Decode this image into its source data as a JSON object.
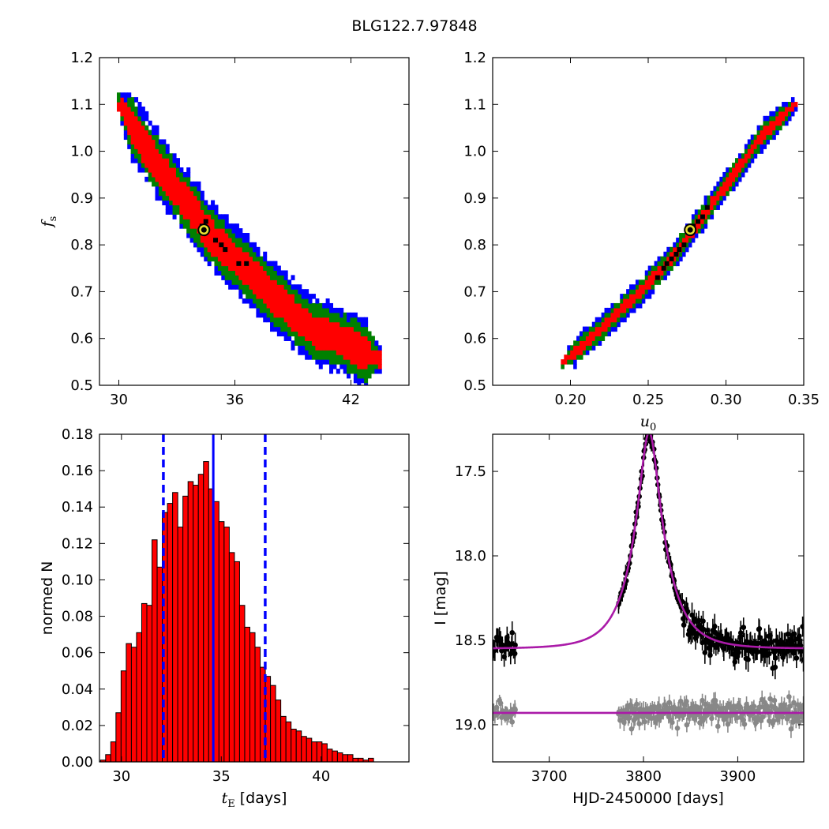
{
  "figure": {
    "title": "BLG122.7.97848"
  },
  "colors": {
    "c68": "#ff0000",
    "c95": "#008000",
    "c99": "#0000ff",
    "best": "#e8e030",
    "fit": "#aa1aa8",
    "resid": "#888888",
    "hist": "#ff0000",
    "median": "#0000ff"
  },
  "chart_data": [
    {
      "id": "tE-fs",
      "type": "heatmap",
      "xlabel": "",
      "ylabel": "f_s",
      "xlim": [
        29,
        45
      ],
      "ylim": [
        0.5,
        1.2
      ],
      "xticks": [
        "30",
        "36",
        "42"
      ],
      "yticks": [
        "0.5",
        "0.6",
        "0.7",
        "0.8",
        "0.9",
        "1.0",
        "1.1",
        "1.2"
      ],
      "band": {
        "center": [
          [
            30.0,
            1.1
          ],
          [
            31.5,
            1.0
          ],
          [
            33.3,
            0.9
          ],
          [
            35.0,
            0.81
          ],
          [
            36.8,
            0.74
          ],
          [
            38.5,
            0.67
          ],
          [
            40.0,
            0.62
          ],
          [
            41.5,
            0.595
          ],
          [
            43.5,
            0.555
          ]
        ],
        "half_widths_fs": {
          "c68": 0.035,
          "c95": 0.055,
          "c99": 0.072
        }
      },
      "best_fit": [
        34.4,
        0.832
      ],
      "samples": [
        [
          34.5,
          0.85
        ],
        [
          35.0,
          0.81
        ],
        [
          35.3,
          0.8
        ],
        [
          35.5,
          0.79
        ],
        [
          36.2,
          0.76
        ],
        [
          36.6,
          0.76
        ],
        [
          34.3,
          0.84
        ]
      ]
    },
    {
      "id": "u0-fs",
      "type": "heatmap",
      "xlabel": "u_0",
      "ylabel": "",
      "xlim": [
        0.15,
        0.35
      ],
      "ylim": [
        0.5,
        1.2
      ],
      "xticks": [
        "0.20",
        "0.25",
        "0.30",
        "0.35"
      ],
      "yticks": [
        "0.5",
        "0.6",
        "0.7",
        "0.8",
        "0.9",
        "1.0",
        "1.1",
        "1.2"
      ],
      "band": {
        "center": [
          [
            0.195,
            0.548
          ],
          [
            0.22,
            0.62
          ],
          [
            0.245,
            0.7
          ],
          [
            0.265,
            0.77
          ],
          [
            0.285,
            0.86
          ],
          [
            0.305,
            0.95
          ],
          [
            0.325,
            1.04
          ],
          [
            0.345,
            1.1
          ]
        ],
        "half_widths_fs": {
          "c68": 0.012,
          "c95": 0.022,
          "c99": 0.03
        }
      },
      "best_fit": [
        0.277,
        0.832
      ],
      "samples": [
        [
          0.262,
          0.76
        ],
        [
          0.265,
          0.77
        ],
        [
          0.268,
          0.78
        ],
        [
          0.27,
          0.79
        ],
        [
          0.273,
          0.8
        ],
        [
          0.279,
          0.84
        ],
        [
          0.282,
          0.85
        ],
        [
          0.285,
          0.86
        ],
        [
          0.288,
          0.88
        ],
        [
          0.256,
          0.73
        ],
        [
          0.26,
          0.75
        ]
      ]
    },
    {
      "id": "tE-hist",
      "type": "bar",
      "xlabel": "t_E [days]",
      "ylabel": "normed N",
      "xlim": [
        28.9,
        44.4
      ],
      "ylim": [
        0,
        0.18
      ],
      "xticks": [
        "30",
        "35",
        "40"
      ],
      "yticks": [
        "0.00",
        "0.02",
        "0.04",
        "0.06",
        "0.08",
        "0.10",
        "0.12",
        "0.14",
        "0.16",
        "0.18"
      ],
      "bin_start": 28.95,
      "bin_width": 0.258,
      "values": [
        0.001,
        0.004,
        0.011,
        0.027,
        0.05,
        0.065,
        0.063,
        0.071,
        0.087,
        0.086,
        0.122,
        0.107,
        0.137,
        0.142,
        0.148,
        0.129,
        0.146,
        0.154,
        0.152,
        0.158,
        0.165,
        0.15,
        0.143,
        0.132,
        0.129,
        0.115,
        0.11,
        0.086,
        0.074,
        0.071,
        0.063,
        0.052,
        0.047,
        0.042,
        0.034,
        0.025,
        0.022,
        0.018,
        0.017,
        0.014,
        0.013,
        0.011,
        0.011,
        0.01,
        0.007,
        0.006,
        0.005,
        0.004,
        0.004,
        0.002,
        0.002,
        0.001,
        0.002
      ],
      "median": 34.6,
      "lower": 32.1,
      "upper": 37.2
    },
    {
      "id": "lightcurve",
      "type": "scatter",
      "xlabel": "HJD-2450000 [days]",
      "ylabel": "I [mag]",
      "xlim": [
        3640,
        3970
      ],
      "ylim": [
        19.22,
        17.28
      ],
      "xticks": [
        "3700",
        "3800",
        "3900"
      ],
      "yticks": [
        "17.5",
        "18.0",
        "18.5",
        "19.0"
      ],
      "model": {
        "t0": 3806,
        "tE": 34.6,
        "u0": 0.277,
        "fs": 0.832,
        "Ibase": 18.55
      },
      "residual_baseline": 18.93,
      "observing_seasons": [
        [
          3640,
          3665
        ],
        [
          3773,
          3970
        ]
      ]
    }
  ]
}
